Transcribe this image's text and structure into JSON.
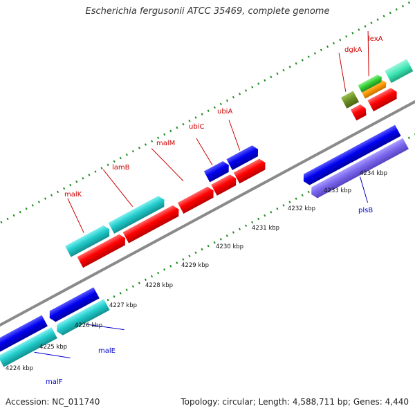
{
  "title": "Escherichia fergusonii ATCC 35469, complete genome",
  "footer": {
    "accession": "Accession: NC_011740",
    "summary": "Topology: circular; Length: 4,588,711 bp; Genes: 4,440"
  },
  "scale_labels": [
    "4224 kbp",
    "4225 kbp",
    "4226 kbp",
    "4227 kbp",
    "4228 kbp",
    "4229 kbp",
    "4230 kbp",
    "4231 kbp",
    "4232 kbp",
    "4233 kbp",
    "4234 kbp"
  ],
  "gene_labels": {
    "forward": [
      "malK",
      "lamB",
      "malM",
      "ubiC",
      "ubiA",
      "dgkA",
      "lexA"
    ],
    "reverse": [
      "malE",
      "malF",
      "plsB"
    ]
  },
  "colors": {
    "red": "#ff0000",
    "blue": "#0000ee",
    "cyan": "#22cccc",
    "purple": "#7b68ee",
    "olive": "#6b8e23",
    "green": "#32cd32",
    "orange": "#ff9900",
    "label_forward": "#cc0000",
    "label_reverse": "#0000cc",
    "backbone": "#888888",
    "tick": "#228b22"
  }
}
